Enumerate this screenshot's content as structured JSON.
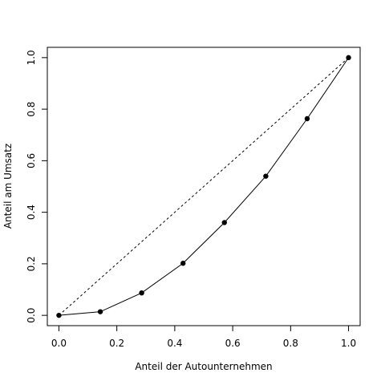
{
  "chart_data": {
    "type": "line",
    "xlabel": "Anteil der Autounternehmen",
    "ylabel": "Anteil am Umsatz",
    "xlim": [
      -0.04,
      1.04
    ],
    "ylim": [
      -0.04,
      1.04
    ],
    "xticks": [
      0.0,
      0.2,
      0.4,
      0.6,
      0.8,
      1.0
    ],
    "yticks": [
      0.0,
      0.2,
      0.4,
      0.6,
      0.8,
      1.0
    ],
    "xtick_labels": [
      "0.0",
      "0.2",
      "0.4",
      "0.6",
      "0.8",
      "1.0"
    ],
    "ytick_labels": [
      "0.0",
      "0.2",
      "0.4",
      "0.6",
      "0.8",
      "1.0"
    ],
    "grid": false,
    "series": [
      {
        "style": "solid-line-with-points",
        "color": "#000000",
        "x": [
          0.0,
          0.1429,
          0.2857,
          0.4286,
          0.5714,
          0.7143,
          0.8571,
          1.0
        ],
        "y": [
          0.0,
          0.014,
          0.087,
          0.202,
          0.36,
          0.54,
          0.763,
          1.0
        ]
      },
      {
        "style": "dashed-line",
        "color": "#000000",
        "x": [
          0.0,
          1.0
        ],
        "y": [
          0.0,
          1.0
        ]
      }
    ]
  }
}
